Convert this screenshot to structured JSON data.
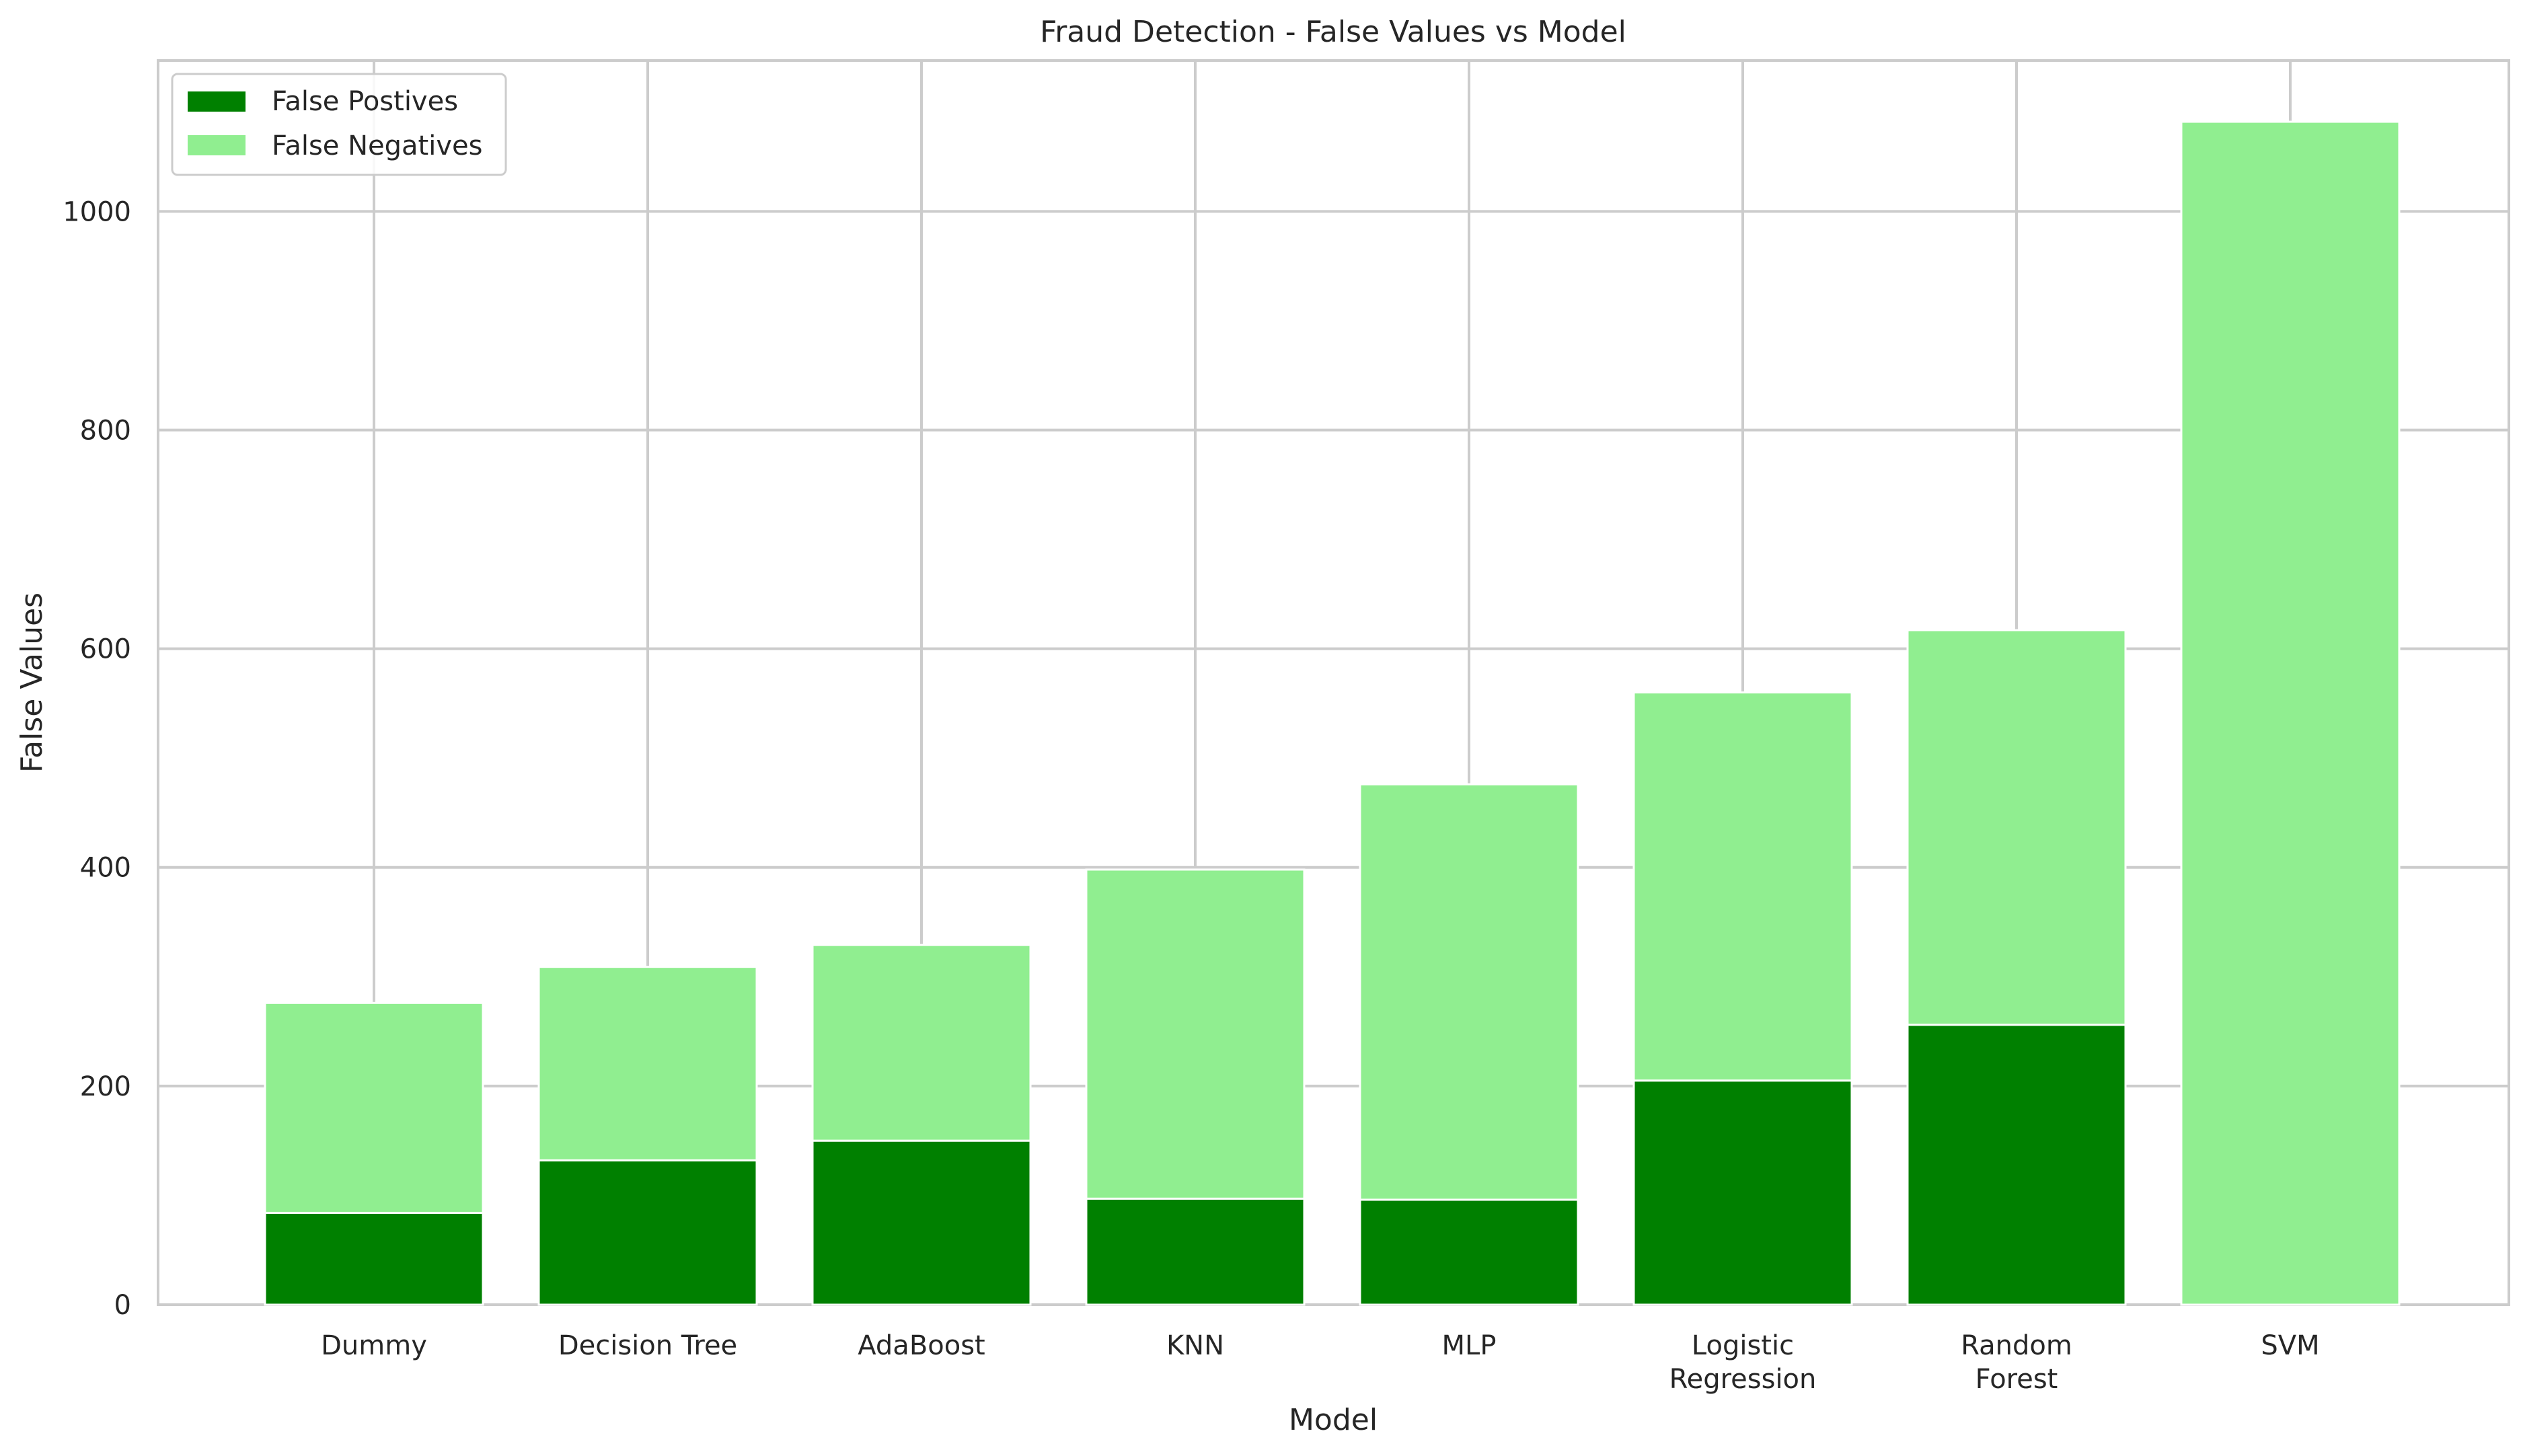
{
  "chart_data": {
    "type": "bar",
    "stacked": true,
    "title": "Fraud Detection - False Values vs Model",
    "xlabel": "Model",
    "ylabel": "False Values",
    "categories": [
      [
        "Dummy"
      ],
      [
        "Decision Tree"
      ],
      [
        "AdaBoost"
      ],
      [
        "KNN"
      ],
      [
        "MLP"
      ],
      [
        "Logistic",
        "Regression"
      ],
      [
        "Random",
        "Forest"
      ],
      [
        "SVM"
      ]
    ],
    "series": [
      {
        "name": "False Postives",
        "color": "#008000",
        "values": [
          84,
          132,
          150,
          97,
          96,
          205,
          256,
          0
        ]
      },
      {
        "name": "False Negatives",
        "color": "#90ee90",
        "values": [
          192,
          177,
          179,
          301,
          380,
          355,
          361,
          1082
        ]
      }
    ],
    "ylim": [
      0,
      1138
    ],
    "yticks": [
      0,
      200,
      400,
      600,
      800,
      1000
    ],
    "grid": true,
    "legend_position": "top-left"
  }
}
